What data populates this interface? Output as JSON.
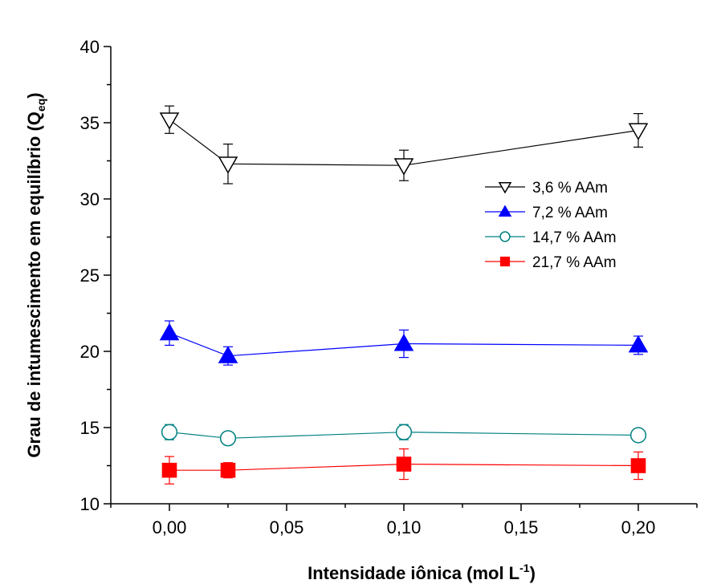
{
  "chart_data": {
    "type": "scatter",
    "title": "",
    "xlabel": "Intensidade iônica (mol L",
    "xlabel_sup": "-1",
    "xlabel_end": ")",
    "ylabel": "Grau de intumescimento em equilíbrio (Q",
    "ylabel_sub": "eq",
    "ylabel_end": ")",
    "xlim": [
      -0.025,
      0.225
    ],
    "ylim": [
      10,
      40
    ],
    "x_ticks": [
      0.0,
      0.05,
      0.1,
      0.15,
      0.2
    ],
    "x_tick_labels": [
      "0,00",
      "0,05",
      "0,10",
      "0,15",
      "0,20"
    ],
    "y_ticks": [
      10,
      15,
      20,
      25,
      30,
      35,
      40
    ],
    "y_tick_labels": [
      "10",
      "15",
      "20",
      "25",
      "30",
      "35",
      "40"
    ],
    "grid": false,
    "legend_position": "right-middle",
    "series": [
      {
        "name": "3,6 % AAm",
        "color": "#000000",
        "marker": "triangle-down-open",
        "x": [
          0.0,
          0.025,
          0.1,
          0.2
        ],
        "y": [
          35.2,
          32.3,
          32.2,
          34.5
        ],
        "err": [
          0.9,
          1.3,
          1.0,
          1.1
        ]
      },
      {
        "name": "7,2 % AAm",
        "color": "#0000ff",
        "marker": "triangle-up-filled",
        "x": [
          0.0,
          0.025,
          0.1,
          0.2
        ],
        "y": [
          21.2,
          19.7,
          20.5,
          20.4
        ],
        "err": [
          0.8,
          0.6,
          0.9,
          0.6
        ]
      },
      {
        "name": "14,7 % AAm",
        "color": "#008080",
        "marker": "circle-open",
        "x": [
          0.0,
          0.025,
          0.1,
          0.2
        ],
        "y": [
          14.7,
          14.3,
          14.7,
          14.5
        ],
        "err": [
          0.5,
          0.3,
          0.5,
          0.3
        ]
      },
      {
        "name": "21,7 % AAm",
        "color": "#ff0000",
        "marker": "square-filled",
        "x": [
          0.0,
          0.025,
          0.1,
          0.2
        ],
        "y": [
          12.2,
          12.2,
          12.6,
          12.5
        ],
        "err": [
          0.9,
          0.5,
          1.0,
          0.9
        ]
      }
    ]
  }
}
